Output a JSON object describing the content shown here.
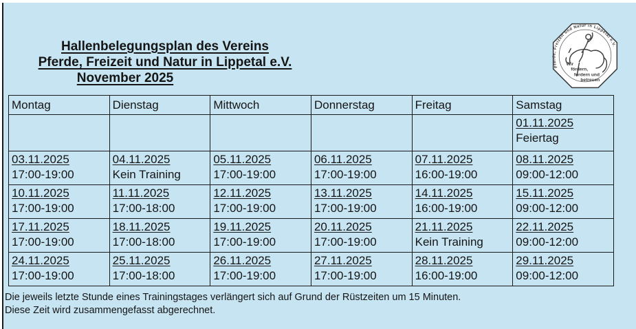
{
  "page": {
    "background_color": "#c6e4f2",
    "title_lines": [
      "Hallenbelegungsplan des Vereins",
      "Pferde, Freizeit und Natur in Lippetal e.V.",
      "November 2025"
    ]
  },
  "logo": {
    "ring_text": "Pferde, Freizeit und Natur in Lippetal e.V.",
    "inner_lines": [
      "Wir",
      "fördern,",
      "fordern und",
      "betreuen"
    ]
  },
  "table": {
    "headers": [
      "Montag",
      "Dienstag",
      "Mittwoch",
      "Donnerstag",
      "Freitag",
      "Samstag"
    ],
    "rows": [
      [
        {
          "date": "",
          "note": ""
        },
        {
          "date": "",
          "note": ""
        },
        {
          "date": "",
          "note": ""
        },
        {
          "date": "",
          "note": ""
        },
        {
          "date": "",
          "note": ""
        },
        {
          "date": "01.11.2025",
          "note": "Feiertag"
        }
      ],
      [
        {
          "date": "03.11.2025",
          "note": "17:00-19:00"
        },
        {
          "date": "04.11.2025",
          "note": "Kein Training"
        },
        {
          "date": "05.11.2025",
          "note": "17:00-19:00"
        },
        {
          "date": "06.11.2025",
          "note": "17:00-19:00"
        },
        {
          "date": "07.11.2025",
          "note": "16:00-19:00"
        },
        {
          "date": "08.11.2025",
          "note": "09:00-12:00"
        }
      ],
      [
        {
          "date": "10.11.2025",
          "note": "17:00-19:00"
        },
        {
          "date": "11.11.2025",
          "note": "17:00-18:00"
        },
        {
          "date": "12.11.2025",
          "note": "17:00-19:00"
        },
        {
          "date": "13.11.2025",
          "note": "17:00-19:00"
        },
        {
          "date": "14.11.2025",
          "note": "16:00-19:00"
        },
        {
          "date": "15.11.2025",
          "note": "09:00-12:00"
        }
      ],
      [
        {
          "date": "17.11.2025",
          "note": "17:00-19:00"
        },
        {
          "date": "18.11.2025",
          "note": "17:00-18:00"
        },
        {
          "date": "19.11.2025",
          "note": "17:00-19:00"
        },
        {
          "date": "20.11.2025",
          "note": "17:00-19:00"
        },
        {
          "date": "21.11.2025",
          "note": "Kein Training"
        },
        {
          "date": "22.11.2025",
          "note": "09:00-12:00"
        }
      ],
      [
        {
          "date": "24.11.2025",
          "note": "17:00-19:00"
        },
        {
          "date": "25.11.2025",
          "note": "17:00-18:00"
        },
        {
          "date": "26.11.2025",
          "note": "17:00-19:00"
        },
        {
          "date": "27.11.2025",
          "note": "17:00-19:00"
        },
        {
          "date": "28.11.2025",
          "note": "16:00-19:00"
        },
        {
          "date": "29.11.2025",
          "note": "09:00-12:00"
        }
      ]
    ]
  },
  "footer": {
    "line1": "Die jeweils letzte Stunde eines Trainingstages verlängert sich auf Grund der Rüstzeiten um 15 Minuten.",
    "line2": "Diese Zeit wird zusammengefasst abgerechnet."
  }
}
